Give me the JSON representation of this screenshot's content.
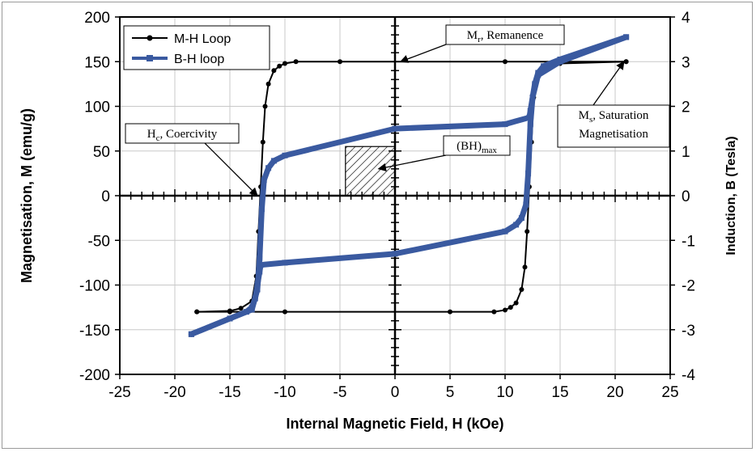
{
  "chart_data": {
    "type": "line",
    "xlabel": "Internal Magnetic Field, H (kOe)",
    "ylabel": "Magnetisation, M (emu/g)",
    "y2label": "Induction, B (Tesla)",
    "xlim": [
      -25,
      25
    ],
    "ylim": [
      -200,
      200
    ],
    "y2lim": [
      -4,
      4
    ],
    "xticks": [
      "-25",
      "-20",
      "-15",
      "-10",
      "-5",
      "0",
      "5",
      "10",
      "15",
      "20",
      "25"
    ],
    "yticks": [
      "-200",
      "-150",
      "-100",
      "-50",
      "0",
      "50",
      "100",
      "150",
      "200"
    ],
    "y2ticks": [
      "-4",
      "-3",
      "-2",
      "-1",
      "0",
      "1",
      "2",
      "3",
      "4"
    ],
    "grid": "vertical and horizontal at major ticks",
    "legend": "top-left",
    "series": [
      {
        "name": "M-H Loop",
        "axis": "left",
        "color": "#000000",
        "marker": "circle",
        "upper_branch": {
          "x": [
            21,
            15,
            10,
            -5,
            -9,
            -10,
            -10.5,
            -11,
            -11.5,
            -11.8,
            -12,
            -12.2,
            -12.4,
            -12.6,
            -13,
            -14,
            -15,
            -18
          ],
          "y": [
            150,
            150,
            150,
            150,
            150,
            148,
            145,
            140,
            125,
            100,
            60,
            10,
            -40,
            -90,
            -118,
            -126,
            -129,
            -130
          ]
        },
        "lower_branch": {
          "x": [
            -18,
            -15,
            -10,
            5,
            9,
            10,
            10.5,
            11,
            11.5,
            11.8,
            12,
            12.2,
            12.4,
            12.6,
            13,
            14,
            15,
            21
          ],
          "y": [
            -130,
            -130,
            -130,
            -130,
            -130,
            -128,
            -125,
            -120,
            -105,
            -80,
            -40,
            10,
            60,
            110,
            135,
            145,
            148,
            150
          ]
        }
      },
      {
        "name": "B-H loop",
        "axis": "right",
        "color": "#3a5aa0",
        "marker": "square",
        "upper_branch": {
          "x": [
            21,
            15,
            13.5,
            13,
            12.7,
            12.5,
            12.3,
            12.2,
            10,
            0,
            -10,
            -11,
            -11.5,
            -11.9,
            -12.1,
            -12.3,
            -12.5,
            -13,
            -15,
            -18.5
          ],
          "y": [
            3.55,
            3.05,
            2.9,
            2.75,
            2.5,
            2.2,
            1.9,
            1.75,
            1.6,
            1.5,
            0.9,
            0.78,
            0.62,
            0.35,
            -0.3,
            -1.4,
            -2.1,
            -2.55,
            -2.75,
            -3.1
          ]
        },
        "lower_branch": {
          "x": [
            -18.5,
            -15,
            -13.5,
            -13,
            -12.7,
            -12.5,
            -12.3,
            -12.2,
            -10,
            0,
            10,
            11,
            11.5,
            11.9,
            12.1,
            12.3,
            12.5,
            13,
            15,
            21
          ],
          "y": [
            -3.1,
            -2.75,
            -2.6,
            -2.5,
            -2.3,
            -2.0,
            -1.7,
            -1.55,
            -1.5,
            -1.3,
            -0.8,
            -0.65,
            -0.5,
            -0.2,
            0.5,
            1.6,
            2.2,
            2.7,
            3.0,
            3.55
          ]
        }
      }
    ],
    "bhmax_box": {
      "x1": -4.5,
      "x2": 0,
      "y1": 0,
      "y2": 55
    },
    "annotations": [
      {
        "main": "M",
        "sub": "r",
        "rest": ", Remanence",
        "arrow_to": {
          "x": 0.5,
          "y": 150
        }
      },
      {
        "main": "H",
        "sub": "c",
        "rest": ", Coercivity",
        "arrow_to": {
          "x": -12.5,
          "y": 0
        }
      },
      {
        "main": "(BH)",
        "sub": "max",
        "rest": "",
        "arrow_to": {
          "x": -1.5,
          "y": 30
        }
      },
      {
        "main": "M",
        "sub": "s",
        "rest": ", Saturation",
        "line2": "Magnetisation",
        "arrow_to": {
          "x": 20.8,
          "y": 150
        }
      }
    ]
  }
}
